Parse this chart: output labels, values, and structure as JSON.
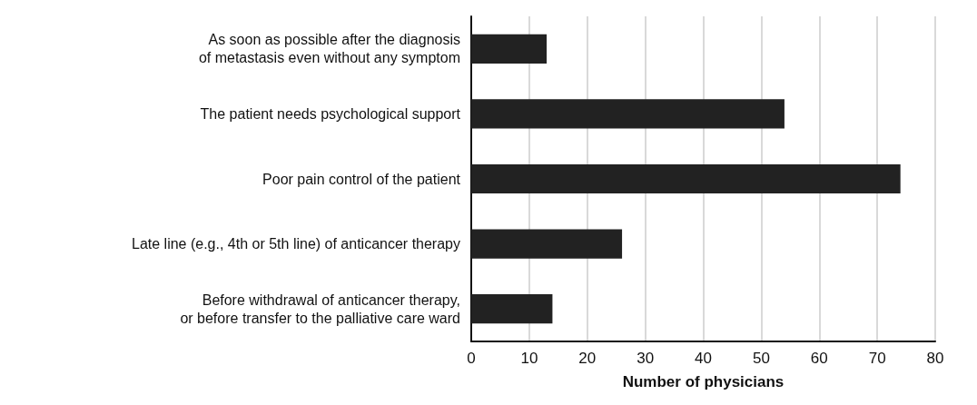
{
  "chart_data": {
    "type": "bar",
    "orientation": "horizontal",
    "categories": [
      "As soon as possible after the diagnosis\nof metastasis even without any symptom",
      "The patient needs psychological support",
      "Poor pain control of the patient",
      "Late line (e.g., 4th or 5th line) of anticancer therapy",
      "Before withdrawal of anticancer therapy,\nor before transfer to the palliative care ward"
    ],
    "values": [
      13,
      54,
      74,
      26,
      14
    ],
    "color": "#222222",
    "xlim": [
      0,
      80
    ],
    "xticks": [
      0,
      10,
      20,
      30,
      40,
      50,
      60,
      70,
      80
    ],
    "xlabel": "Number of physicians",
    "grid": "x"
  }
}
